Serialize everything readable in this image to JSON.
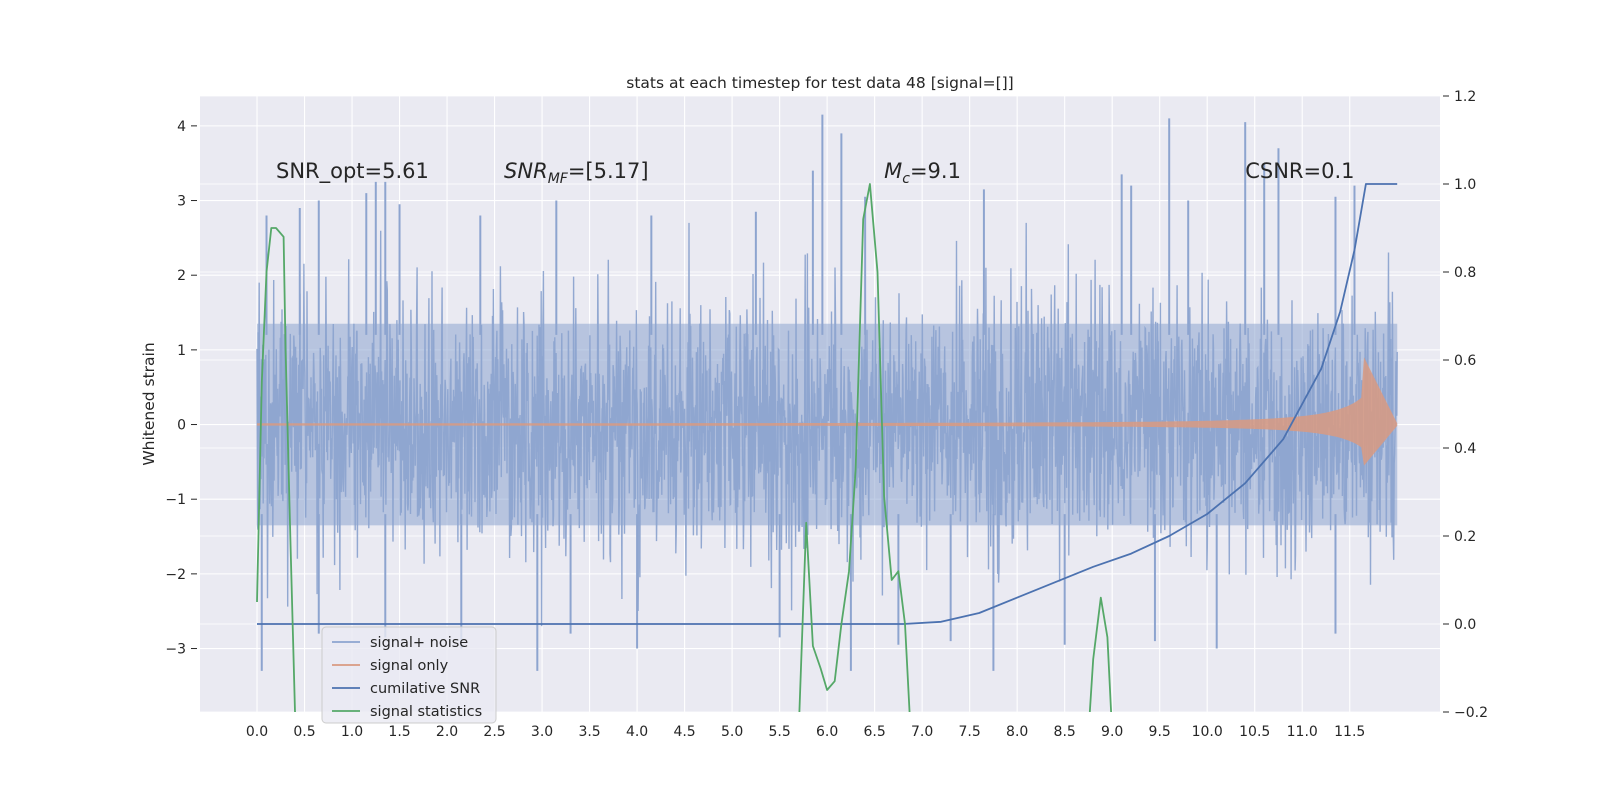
{
  "chart_data": {
    "type": "line",
    "title": "stats at each timestep for test data 48 [signal=[]]",
    "xlabel": "",
    "ylabel": "Whitened strain",
    "y2label": "",
    "xlim": [
      -0.6,
      12.45
    ],
    "ylim": [
      -3.85,
      4.4
    ],
    "y2lim": [
      -0.2,
      1.2
    ],
    "x_ticks": [
      0.0,
      0.5,
      1.0,
      1.5,
      2.0,
      2.5,
      3.0,
      3.5,
      4.0,
      4.5,
      5.0,
      5.5,
      6.0,
      6.5,
      7.0,
      7.5,
      8.0,
      8.5,
      9.0,
      9.5,
      10.0,
      10.5,
      11.0,
      11.5
    ],
    "x_tick_labels": [
      "0.0",
      "0.5",
      "1.0",
      "1.5",
      "2.0",
      "2.5",
      "3.0",
      "3.5",
      "4.0",
      "4.5",
      "5.0",
      "5.5",
      "6.0",
      "6.5",
      "7.0",
      "7.5",
      "8.0",
      "8.5",
      "9.0",
      "9.5",
      "10.0",
      "10.5",
      "11.0",
      "11.5"
    ],
    "y_ticks": [
      -3,
      -2,
      -1,
      0,
      1,
      2,
      3,
      4
    ],
    "y_tick_labels": [
      "−3",
      "−2",
      "−1",
      "0",
      "1",
      "2",
      "3",
      "4"
    ],
    "y2_ticks": [
      -0.2,
      0.0,
      0.2,
      0.4,
      0.6,
      0.8,
      1.0,
      1.2
    ],
    "y2_tick_labels": [
      "−0.2",
      "0.0",
      "0.2",
      "0.4",
      "0.6",
      "0.8",
      "1.0",
      "1.2"
    ],
    "grid": true,
    "legend_position": "lower-left",
    "annotations": [
      {
        "id": "snr-opt",
        "text": "SNR_opt=5.61",
        "x": 0.2,
        "y": 3.3
      },
      {
        "id": "snr-mf",
        "text": "SNR",
        "sub": "MF",
        "suffix": "=[5.17]",
        "italic": true,
        "x": 2.6,
        "y": 3.3
      },
      {
        "id": "mc",
        "text": "M",
        "sub": "c",
        "suffix": "=9.1",
        "italic": true,
        "x": 6.6,
        "y": 3.3
      },
      {
        "id": "csnr",
        "text": "CSNR=0.1",
        "x": 10.4,
        "y": 3.3
      }
    ],
    "series": [
      {
        "name": "signal+ noise",
        "color": "#8da4cf",
        "axis": "left",
        "kind": "noise",
        "x_range": [
          0.0,
          12.0
        ],
        "envelope": 1.35,
        "peaks": [
          [
            0.1,
            2.8
          ],
          [
            0.45,
            2.9
          ],
          [
            0.65,
            3.0
          ],
          [
            1.15,
            3.1
          ],
          [
            1.25,
            3.25
          ],
          [
            1.35,
            3.25
          ],
          [
            1.5,
            2.95
          ],
          [
            2.35,
            2.8
          ],
          [
            3.15,
            3.0
          ],
          [
            4.15,
            2.8
          ],
          [
            5.25,
            2.85
          ],
          [
            5.85,
            3.4
          ],
          [
            5.95,
            4.15
          ],
          [
            6.15,
            3.9
          ],
          [
            6.4,
            3.05
          ],
          [
            7.65,
            3.15
          ],
          [
            9.1,
            3.35
          ],
          [
            9.2,
            3.2
          ],
          [
            9.6,
            4.1
          ],
          [
            9.8,
            3.0
          ],
          [
            10.6,
            3.5
          ],
          [
            10.4,
            4.05
          ],
          [
            10.75,
            3.7
          ],
          [
            11.35,
            3.05
          ],
          [
            11.55,
            3.2
          ]
        ],
        "troughs": [
          [
            0.05,
            -3.3
          ],
          [
            0.65,
            -2.8
          ],
          [
            1.35,
            -2.85
          ],
          [
            2.15,
            -3.0
          ],
          [
            2.95,
            -3.3
          ],
          [
            3.3,
            -2.8
          ],
          [
            4.0,
            -3.0
          ],
          [
            5.5,
            -2.85
          ],
          [
            6.25,
            -3.3
          ],
          [
            6.75,
            -2.95
          ],
          [
            7.3,
            -2.9
          ],
          [
            7.75,
            -3.3
          ],
          [
            8.5,
            -2.95
          ],
          [
            9.45,
            -2.9
          ],
          [
            10.1,
            -3.0
          ],
          [
            11.35,
            -2.8
          ]
        ]
      },
      {
        "name": "signal only",
        "color": "#d99a81",
        "axis": "left",
        "kind": "chirp",
        "x_range": [
          0.0,
          12.0
        ],
        "peak_x": 11.65,
        "max_amp": [
          0.9,
          -0.55
        ]
      },
      {
        "name": "cumilative SNR",
        "color": "#4c72b0",
        "axis": "right",
        "x": [
          0.0,
          6.8,
          7.2,
          7.6,
          8.0,
          8.4,
          8.8,
          9.2,
          9.6,
          10.0,
          10.4,
          10.8,
          11.2,
          11.4,
          11.55,
          11.67,
          12.0
        ],
        "y": [
          0.0,
          0.0,
          0.005,
          0.025,
          0.06,
          0.095,
          0.13,
          0.16,
          0.2,
          0.25,
          0.32,
          0.42,
          0.58,
          0.71,
          0.85,
          1.0,
          1.0
        ]
      },
      {
        "name": "signal statistics",
        "color": "#55a868",
        "axis": "right",
        "x": [
          0.0,
          0.05,
          0.1,
          0.15,
          0.2,
          0.28,
          0.3,
          0.35,
          0.4,
          0.42,
          5.7,
          5.78,
          5.85,
          5.93,
          6.0,
          6.08,
          6.15,
          6.23,
          6.3,
          6.38,
          6.45,
          6.53,
          6.6,
          6.68,
          6.75,
          6.82,
          6.88,
          8.75,
          8.8,
          8.88,
          8.95,
          9.0
        ],
        "y": [
          0.05,
          0.55,
          0.8,
          0.9,
          0.9,
          0.88,
          0.63,
          0.2,
          -0.2,
          -0.25,
          -0.25,
          0.23,
          -0.05,
          -0.1,
          -0.15,
          -0.13,
          0.0,
          0.12,
          0.35,
          0.92,
          1.0,
          0.8,
          0.29,
          0.1,
          0.12,
          0.0,
          -0.25,
          -0.25,
          -0.08,
          0.06,
          -0.03,
          -0.25
        ],
        "gaps_after": [
          9,
          26
        ]
      }
    ]
  }
}
